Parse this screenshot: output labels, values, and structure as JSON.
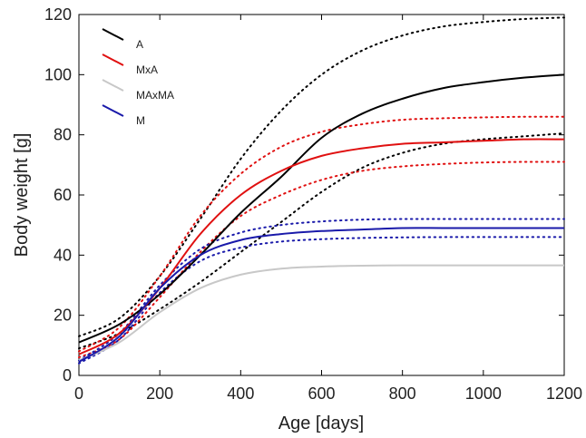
{
  "chart_data": {
    "type": "line",
    "xlabel": "Age [days]",
    "ylabel": "Body weight [g]",
    "xlim": [
      0,
      1200
    ],
    "ylim": [
      0,
      120
    ],
    "x_ticks": [
      "0",
      "200",
      "400",
      "600",
      "800",
      "1000",
      "1200"
    ],
    "y_ticks": [
      "0",
      "20",
      "40",
      "60",
      "80",
      "100",
      "120"
    ],
    "grid": false,
    "legend_position": "top-left",
    "x": [
      0,
      100,
      200,
      300,
      400,
      500,
      600,
      700,
      800,
      900,
      1000,
      1100,
      1200
    ],
    "series": [
      {
        "name": "A",
        "color": "#000000",
        "values": [
          11,
          17,
          27,
          40,
          54,
          66,
          79,
          87,
          92,
          95.5,
          97.5,
          99,
          100
        ],
        "band_upper": [
          13,
          19,
          33,
          52,
          72,
          88,
          100,
          108,
          113,
          116,
          117.5,
          118.5,
          119
        ],
        "band_lower": [
          9,
          14,
          22,
          31,
          41,
          51,
          61,
          69,
          74,
          77,
          78.5,
          79.5,
          80.5
        ]
      },
      {
        "name": "MxA",
        "color": "#e01010",
        "values": [
          7,
          14,
          29,
          47,
          60,
          68,
          73,
          75.5,
          77,
          77.5,
          78,
          78.5,
          78.5
        ],
        "band_upper": [
          8,
          16,
          33,
          53,
          67,
          76,
          81,
          83.5,
          85,
          85.5,
          85.8,
          86,
          86
        ],
        "band_lower": [
          6,
          12,
          26,
          41,
          53,
          60,
          65,
          68,
          69.5,
          70.3,
          70.8,
          71,
          71
        ]
      },
      {
        "name": "MAxMA",
        "color": "#c8c8c8",
        "values": [
          5,
          11,
          21,
          29,
          33.5,
          35.5,
          36.2,
          36.5,
          36.6,
          36.6,
          36.6,
          36.6,
          36.6
        ]
      },
      {
        "name": "M",
        "color": "#1a1aaa",
        "values": [
          4.5,
          13,
          29,
          40,
          45,
          47,
          48,
          48.5,
          49,
          49,
          49,
          49,
          49
        ],
        "band_upper": [
          5,
          14,
          30,
          42,
          47.5,
          50,
          51.2,
          51.8,
          52,
          52,
          52,
          52,
          52
        ],
        "band_lower": [
          4,
          12,
          27.5,
          38,
          42.5,
          44.5,
          45.3,
          45.7,
          45.9,
          46,
          46,
          46,
          46
        ]
      }
    ]
  }
}
